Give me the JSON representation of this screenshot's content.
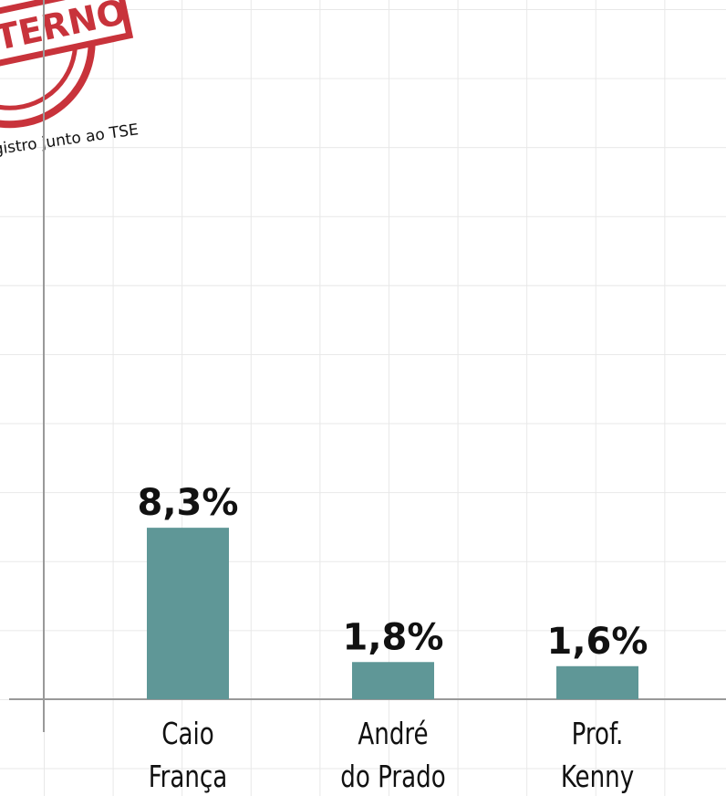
{
  "chart_data": {
    "type": "bar",
    "stamp": "INTERNO",
    "note": "Registro junto ao TSE",
    "categories": [
      "Caio\nFrança",
      "André\ndo Prado",
      "Prof.\nKenny"
    ],
    "values": [
      8.3,
      1.8,
      1.6
    ],
    "value_labels": [
      "8,3%",
      "1,8%",
      "1,6%"
    ],
    "color": "#5f9797",
    "ylim": [
      0,
      33.4
    ]
  }
}
